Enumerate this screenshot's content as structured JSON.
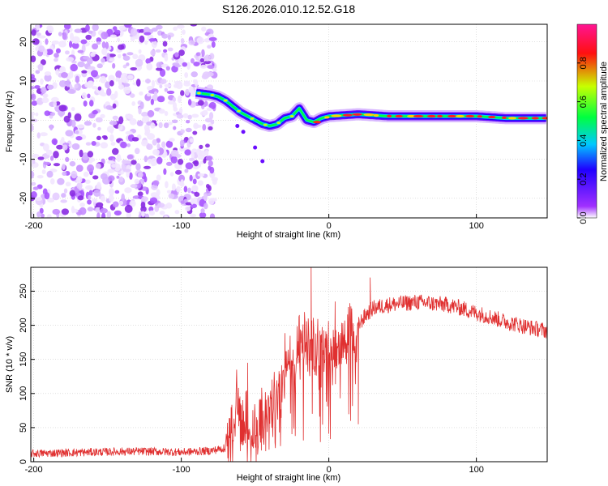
{
  "title": "S126.2026.010.12.52.G18",
  "chart_data": [
    {
      "type": "heatmap",
      "title": "S126.2026.010.12.52.G18",
      "xlabel": "Height of straight line (km)",
      "ylabel": "Frequency (Hz)",
      "xlim": [
        -202,
        148
      ],
      "ylim": [
        -25,
        24.5
      ],
      "xticks": [
        -200,
        -100,
        0,
        100
      ],
      "yticks": [
        -20,
        -10,
        0,
        10,
        20
      ],
      "grid": true,
      "colorbar": {
        "label": "Normalized spectral amplitude",
        "range": [
          0,
          1
        ],
        "ticks": [
          0.0,
          0.2,
          0.4,
          0.6,
          0.8
        ],
        "tick_labels": [
          "0.0",
          "0.2",
          "0.4",
          "0.6",
          "0.8"
        ],
        "colors": [
          "#ffffff",
          "#a030ff",
          "#2000ff",
          "#00c8ff",
          "#00ff40",
          "#c8ff00",
          "#ff1010",
          "#ff1493"
        ]
      },
      "noise_region_x": [
        -202,
        -77
      ],
      "signal_track": {
        "x": [
          -90,
          -80,
          -75,
          -70,
          -65,
          -60,
          -55,
          -50,
          -45,
          -40,
          -35,
          -30,
          -25,
          -20,
          -15,
          -10,
          -5,
          0,
          20,
          40,
          60,
          80,
          100,
          120,
          148
        ],
        "freq": [
          7,
          6.5,
          6,
          5,
          3.5,
          2,
          1,
          0,
          -1,
          -1.5,
          -1,
          0.5,
          1,
          3,
          0,
          -0.5,
          0.5,
          1,
          1.5,
          1,
          1,
          1,
          1,
          0.5,
          0.5
        ]
      }
    },
    {
      "type": "line",
      "xlabel": "Height of straight line (km)",
      "ylabel": "SNR (10 * v/v)",
      "xlim": [
        -202,
        148
      ],
      "ylim": [
        0,
        285
      ],
      "xticks": [
        -200,
        -100,
        0,
        100
      ],
      "yticks": [
        0,
        50,
        100,
        150,
        200,
        250
      ],
      "grid": true,
      "color": "#e03030",
      "series": [
        {
          "name": "SNR",
          "x": [
            -202,
            -180,
            -160,
            -140,
            -120,
            -100,
            -90,
            -80,
            -70,
            -65,
            -62,
            -58,
            -55,
            -52,
            -50,
            -45,
            -40,
            -35,
            -30,
            -25,
            -20,
            -15,
            -12,
            -10,
            -5,
            0,
            5,
            10,
            15,
            18,
            20,
            25,
            30,
            40,
            50,
            60,
            70,
            80,
            90,
            100,
            110,
            120,
            130,
            140,
            148
          ],
          "y": [
            12,
            13,
            14,
            15,
            15,
            14,
            15,
            16,
            20,
            35,
            110,
            40,
            50,
            30,
            35,
            60,
            90,
            110,
            130,
            145,
            160,
            170,
            160,
            150,
            165,
            170,
            175,
            185,
            190,
            140,
            200,
            215,
            225,
            230,
            232,
            234,
            232,
            230,
            225,
            218,
            212,
            205,
            200,
            195,
            192
          ]
        }
      ]
    }
  ]
}
